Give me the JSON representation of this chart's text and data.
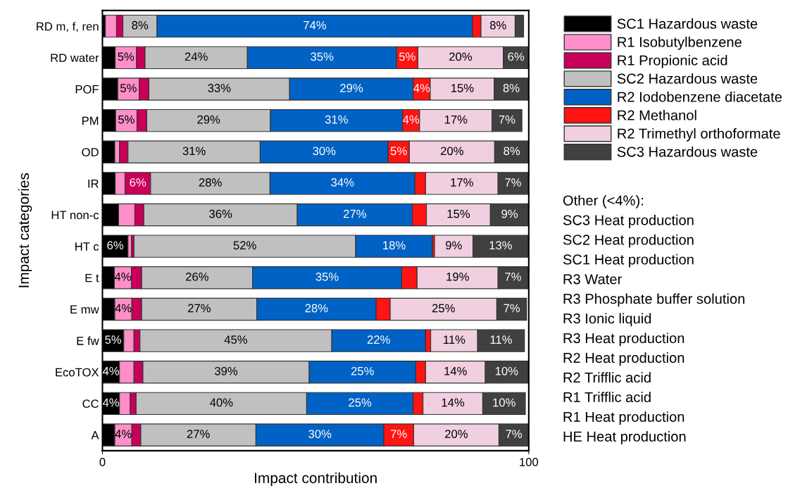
{
  "chart_data": {
    "type": "bar",
    "orientation": "horizontal",
    "stacked": true,
    "xlabel": "Impact contribution",
    "ylabel": "Impact categories",
    "categories": [
      "RD m, f, ren",
      "RD water",
      "POF",
      "PM",
      "OD",
      "IR",
      "HT non-c",
      "HT c",
      "E t",
      "E mw",
      "E fw",
      "EcoTOX",
      "CC",
      "A"
    ],
    "xlim": [
      0,
      100
    ],
    "xticks": [
      0,
      100
    ],
    "grid": false,
    "legend": "right",
    "series": [
      {
        "name": "SC1 Hazardous waste",
        "color": "#000000",
        "values": [
          0.7,
          3,
          3.6,
          3.1,
          2.9,
          3,
          3.8,
          6,
          2.8,
          2.9,
          5,
          4,
          4,
          2.9
        ],
        "value_labels": [
          null,
          null,
          null,
          null,
          null,
          null,
          null,
          "6%",
          null,
          null,
          "5%",
          "4%",
          "4%",
          null
        ]
      },
      {
        "name": "R1 Isobutylbenzene",
        "color": "#ff8fc8",
        "values": [
          2.6,
          5,
          5,
          5,
          1.1,
          2.3,
          3.8,
          0.8,
          4,
          4,
          2.4,
          3.4,
          2.5,
          4
        ],
        "value_labels": [
          null,
          "5%",
          "5%",
          "5%",
          null,
          null,
          null,
          null,
          "4%",
          "4%",
          null,
          null,
          null,
          "4%"
        ]
      },
      {
        "name": "R1 Propionic acid",
        "color": "#c8005a",
        "values": [
          1.5,
          2.0,
          2.3,
          2.3,
          2,
          6,
          2.1,
          0.6,
          2.4,
          2.3,
          1.4,
          2.1,
          1.4,
          2.1
        ],
        "value_labels": [
          null,
          null,
          null,
          null,
          null,
          "6%",
          null,
          null,
          null,
          null,
          null,
          null,
          null,
          null
        ]
      },
      {
        "name": "SC2 Hazardous waste",
        "color": "#c0c0c0",
        "values": [
          8,
          24,
          33,
          29,
          31,
          28,
          36,
          52,
          26,
          27,
          45,
          39,
          40,
          27
        ],
        "value_labels": [
          "8%",
          "24%",
          "33%",
          "29%",
          "31%",
          "28%",
          "36%",
          "52%",
          "26%",
          "27%",
          "45%",
          "39%",
          "40%",
          "27%"
        ]
      },
      {
        "name": "R2 Iodobenzene diacetate",
        "color": "#0062c4",
        "values": [
          74,
          35,
          29,
          31,
          30,
          34,
          27,
          18,
          35,
          28,
          22,
          25,
          25,
          30
        ],
        "value_labels": [
          "74%",
          "35%",
          "29%",
          "31%",
          "30%",
          "34%",
          "27%",
          "18%",
          "35%",
          "28%",
          "22%",
          "25%",
          "25%",
          "30%"
        ]
      },
      {
        "name": "R2 Methanol",
        "color": "#ff1414",
        "values": [
          2,
          5,
          4,
          4,
          5,
          2.5,
          3.3,
          0.5,
          3.6,
          3.3,
          1.2,
          2.3,
          2.3,
          7
        ],
        "value_labels": [
          null,
          "5%",
          "4%",
          "4%",
          "5%",
          null,
          null,
          null,
          null,
          null,
          null,
          null,
          null,
          "7%"
        ]
      },
      {
        "name": "R2 Trimethyl orthoformate",
        "color": "#f0d0e0",
        "values": [
          8,
          20,
          15,
          17,
          20,
          17,
          15,
          9,
          19,
          25,
          11,
          14,
          14,
          20
        ],
        "value_labels": [
          "8%",
          "20%",
          "15%",
          "17%",
          "20%",
          "17%",
          "15%",
          "9%",
          "19%",
          "25%",
          "11%",
          "14%",
          "14%",
          "20%"
        ]
      },
      {
        "name": "SC3 Hazardous waste",
        "color": "#404040",
        "values": [
          2,
          6,
          8,
          7,
          8,
          7,
          9,
          13,
          7,
          7,
          11,
          10,
          10,
          7
        ],
        "value_labels": [
          null,
          "6%",
          "8%",
          "7%",
          "8%",
          "7%",
          "9%",
          "13%",
          "7%",
          "7%",
          "11%",
          "10%",
          "10%",
          "7%"
        ]
      }
    ],
    "annotations": [
      "Other (<4%):",
      "SC3 Heat production",
      "SC2 Heat production",
      "SC1 Heat production",
      "R3 Water",
      "R3 Phosphate buffer solution",
      "R3 Ionic liquid",
      "R3 Heat production",
      "R2 Heat production",
      "R2 Trifflic acid",
      "R1 Trifflic acid",
      "R1 Heat production",
      "HE Heat production"
    ]
  }
}
